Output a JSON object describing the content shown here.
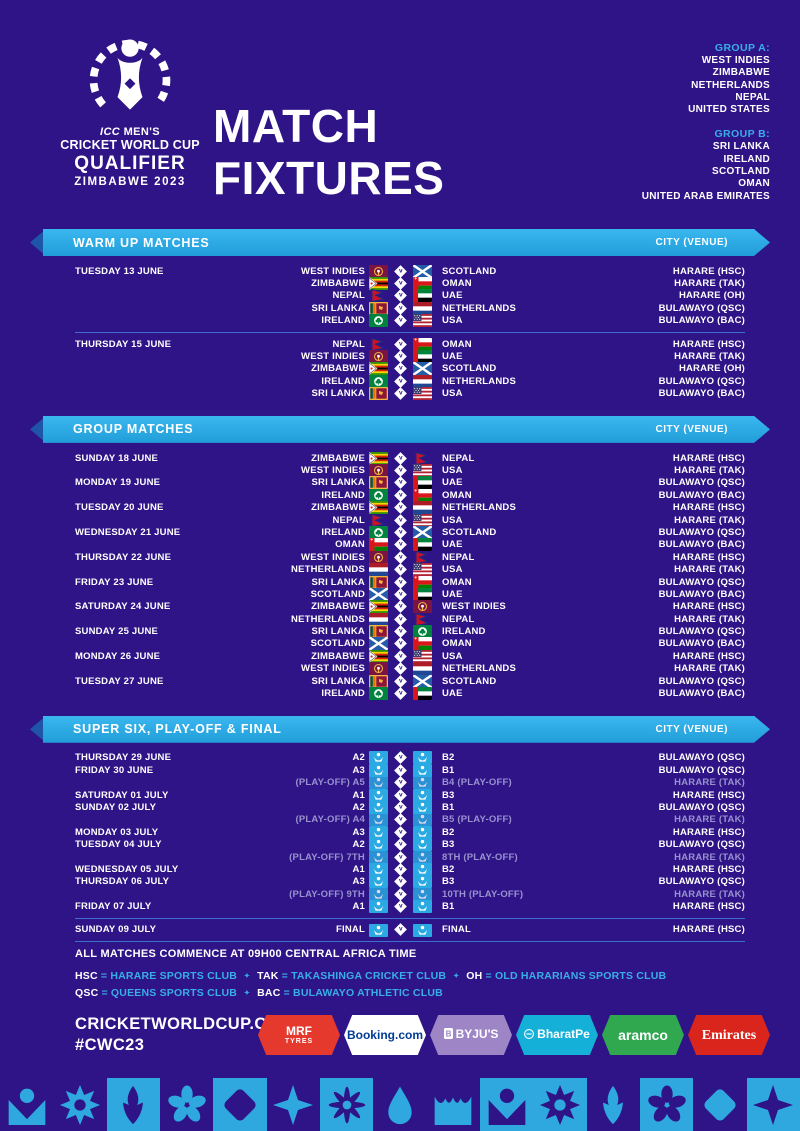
{
  "colors": {
    "background": "#2F1487",
    "banner_blue": "#29A9E1",
    "banner_tail": "#1E55A9",
    "cyan_text": "#38AEE9",
    "dim_text": "#9A92CF",
    "divider": "#3D6FD2",
    "band_blue": "#2FA8E0"
  },
  "header": {
    "logo": {
      "line1_italic": "ICC",
      "line1_rest": " MEN'S",
      "line2": "CRICKET WORLD CUP",
      "line3": "QUALIFIER",
      "line4": "ZIMBABWE 2023"
    },
    "title_line1": "MATCH",
    "title_line2": "FIXTURES",
    "group_a": {
      "label": "GROUP A:",
      "teams": [
        "WEST INDIES",
        "ZIMBABWE",
        "NETHERLANDS",
        "NEPAL",
        "UNITED STATES"
      ]
    },
    "group_b": {
      "label": "GROUP B:",
      "teams": [
        "SRI LANKA",
        "IRELAND",
        "SCOTLAND",
        "OMAN",
        "UNITED ARAB EMIRATES"
      ]
    }
  },
  "sections": [
    {
      "id": "warmup",
      "title": "WARM UP MATCHES",
      "venue_header": "CITY (VENUE)",
      "rows": [
        {
          "date": "TUESDAY 13 JUNE",
          "team1": "WEST INDIES",
          "flag1": "west-indies",
          "team2": "SCOTLAND",
          "flag2": "scotland",
          "venue": "HARARE (HSC)"
        },
        {
          "date": "",
          "team1": "ZIMBABWE",
          "flag1": "zimbabwe",
          "team2": "OMAN",
          "flag2": "oman",
          "venue": "HARARE (TAK)"
        },
        {
          "date": "",
          "team1": "NEPAL",
          "flag1": "nepal",
          "team2": "UAE",
          "flag2": "uae",
          "venue": "HARARE (OH)"
        },
        {
          "date": "",
          "team1": "SRI LANKA",
          "flag1": "sri-lanka",
          "team2": "NETHERLANDS",
          "flag2": "netherlands",
          "venue": "BULAWAYO (QSC)"
        },
        {
          "date": "",
          "team1": "IRELAND",
          "flag1": "ireland",
          "team2": "USA",
          "flag2": "usa",
          "venue": "BULAWAYO (BAC)"
        },
        {
          "date": "THURSDAY 15 JUNE",
          "team1": "NEPAL",
          "flag1": "nepal",
          "team2": "OMAN",
          "flag2": "oman",
          "venue": "HARARE (HSC)",
          "divider_above": true
        },
        {
          "date": "",
          "team1": "WEST INDIES",
          "flag1": "west-indies",
          "team2": "UAE",
          "flag2": "uae",
          "venue": "HARARE (TAK)"
        },
        {
          "date": "",
          "team1": "ZIMBABWE",
          "flag1": "zimbabwe",
          "team2": "SCOTLAND",
          "flag2": "scotland",
          "venue": "HARARE (OH)"
        },
        {
          "date": "",
          "team1": "IRELAND",
          "flag1": "ireland",
          "team2": "NETHERLANDS",
          "flag2": "netherlands",
          "venue": "BULAWAYO (QSC)"
        },
        {
          "date": "",
          "team1": "SRI LANKA",
          "flag1": "sri-lanka",
          "team2": "USA",
          "flag2": "usa",
          "venue": "BULAWAYO (BAC)"
        }
      ]
    },
    {
      "id": "group",
      "title": "GROUP MATCHES",
      "venue_header": "CITY (VENUE)",
      "rows": [
        {
          "date": "SUNDAY 18 JUNE",
          "team1": "ZIMBABWE",
          "flag1": "zimbabwe",
          "team2": "NEPAL",
          "flag2": "nepal",
          "venue": "HARARE (HSC)"
        },
        {
          "date": "",
          "team1": "WEST INDIES",
          "flag1": "west-indies",
          "team2": "USA",
          "flag2": "usa",
          "venue": "HARARE (TAK)"
        },
        {
          "date": "MONDAY 19 JUNE",
          "team1": "SRI LANKA",
          "flag1": "sri-lanka",
          "team2": "UAE",
          "flag2": "uae",
          "venue": "BULAWAYO (QSC)"
        },
        {
          "date": "",
          "team1": "IRELAND",
          "flag1": "ireland",
          "team2": "OMAN",
          "flag2": "oman",
          "venue": "BULAWAYO (BAC)"
        },
        {
          "date": "TUESDAY 20 JUNE",
          "team1": "ZIMBABWE",
          "flag1": "zimbabwe",
          "team2": "NETHERLANDS",
          "flag2": "netherlands",
          "venue": "HARARE (HSC)"
        },
        {
          "date": "",
          "team1": "NEPAL",
          "flag1": "nepal",
          "team2": "USA",
          "flag2": "usa",
          "venue": "HARARE (TAK)"
        },
        {
          "date": "WEDNESDAY 21 JUNE",
          "team1": "IRELAND",
          "flag1": "ireland",
          "team2": "SCOTLAND",
          "flag2": "scotland",
          "venue": "BULAWAYO (QSC)"
        },
        {
          "date": "",
          "team1": "OMAN",
          "flag1": "oman",
          "team2": "UAE",
          "flag2": "uae",
          "venue": "BULAWAYO (BAC)"
        },
        {
          "date": "THURSDAY 22 JUNE",
          "team1": "WEST INDIES",
          "flag1": "west-indies",
          "team2": "NEPAL",
          "flag2": "nepal",
          "venue": "HARARE (HSC)"
        },
        {
          "date": "",
          "team1": "NETHERLANDS",
          "flag1": "netherlands",
          "team2": "USA",
          "flag2": "usa",
          "venue": "HARARE (TAK)"
        },
        {
          "date": "FRIDAY 23 JUNE",
          "team1": "SRI LANKA",
          "flag1": "sri-lanka",
          "team2": "OMAN",
          "flag2": "oman",
          "venue": "BULAWAYO (QSC)"
        },
        {
          "date": "",
          "team1": "SCOTLAND",
          "flag1": "scotland",
          "team2": "UAE",
          "flag2": "uae",
          "venue": "BULAWAYO (BAC)"
        },
        {
          "date": "SATURDAY 24 JUNE",
          "team1": "ZIMBABWE",
          "flag1": "zimbabwe",
          "team2": "WEST INDIES",
          "flag2": "west-indies",
          "venue": "HARARE (HSC)"
        },
        {
          "date": "",
          "team1": "NETHERLANDS",
          "flag1": "netherlands",
          "team2": "NEPAL",
          "flag2": "nepal",
          "venue": "HARARE (TAK)"
        },
        {
          "date": "SUNDAY 25 JUNE",
          "team1": "SRI LANKA",
          "flag1": "sri-lanka",
          "team2": "IRELAND",
          "flag2": "ireland",
          "venue": "BULAWAYO (QSC)"
        },
        {
          "date": "",
          "team1": "SCOTLAND",
          "flag1": "scotland",
          "team2": "OMAN",
          "flag2": "oman",
          "venue": "BULAWAYO (BAC)"
        },
        {
          "date": "MONDAY 26 JUNE",
          "team1": "ZIMBABWE",
          "flag1": "zimbabwe",
          "team2": "USA",
          "flag2": "usa",
          "venue": "HARARE (HSC)"
        },
        {
          "date": "",
          "team1": "WEST INDIES",
          "flag1": "west-indies",
          "team2": "NETHERLANDS",
          "flag2": "netherlands",
          "venue": "HARARE (TAK)"
        },
        {
          "date": "TUESDAY 27 JUNE",
          "team1": "SRI LANKA",
          "flag1": "sri-lanka",
          "team2": "SCOTLAND",
          "flag2": "scotland",
          "venue": "BULAWAYO (QSC)"
        },
        {
          "date": "",
          "team1": "IRELAND",
          "flag1": "ireland",
          "team2": "UAE",
          "flag2": "uae",
          "venue": "BULAWAYO (BAC)"
        }
      ]
    },
    {
      "id": "supersix",
      "title": "SUPER SIX, PLAY-OFF & FINAL",
      "venue_header": "CITY (VENUE)",
      "rows": [
        {
          "date": "THURSDAY 29 JUNE",
          "team1": "A2",
          "flag1": "tbd",
          "team2": "B2",
          "flag2": "tbd",
          "venue": "BULAWAYO (QSC)"
        },
        {
          "date": "FRIDAY 30 JUNE",
          "team1": "A3",
          "flag1": "tbd",
          "team2": "B1",
          "flag2": "tbd",
          "venue": "BULAWAYO (QSC)"
        },
        {
          "date": "",
          "team1": "(PLAY-OFF) A5",
          "flag1": "tbd",
          "team2": "B4 (PLAY-OFF)",
          "flag2": "tbd",
          "venue": "HARARE (TAK)",
          "dim": true
        },
        {
          "date": "SATURDAY 01 JULY",
          "team1": "A1",
          "flag1": "tbd",
          "team2": "B3",
          "flag2": "tbd",
          "venue": "HARARE (HSC)"
        },
        {
          "date": "SUNDAY 02 JULY",
          "team1": "A2",
          "flag1": "tbd",
          "team2": "B1",
          "flag2": "tbd",
          "venue": "BULAWAYO (QSC)"
        },
        {
          "date": "",
          "team1": "(PLAY-OFF) A4",
          "flag1": "tbd",
          "team2": "B5 (PLAY-OFF)",
          "flag2": "tbd",
          "venue": "HARARE (TAK)",
          "dim": true
        },
        {
          "date": "MONDAY 03 JULY",
          "team1": "A3",
          "flag1": "tbd",
          "team2": "B2",
          "flag2": "tbd",
          "venue": "HARARE (HSC)"
        },
        {
          "date": "TUESDAY 04 JULY",
          "team1": "A2",
          "flag1": "tbd",
          "team2": "B3",
          "flag2": "tbd",
          "venue": "BULAWAYO (QSC)"
        },
        {
          "date": "",
          "team1": "(PLAY-OFF) 7TH",
          "flag1": "tbd",
          "team2": "8TH (PLAY-OFF)",
          "flag2": "tbd",
          "venue": "HARARE (TAK)",
          "dim": true
        },
        {
          "date": "WEDNESDAY 05 JULY",
          "team1": "A1",
          "flag1": "tbd",
          "team2": "B2",
          "flag2": "tbd",
          "venue": "HARARE (HSC)"
        },
        {
          "date": "THURSDAY 06 JULY",
          "team1": "A3",
          "flag1": "tbd",
          "team2": "B3",
          "flag2": "tbd",
          "venue": "BULAWAYO (QSC)"
        },
        {
          "date": "",
          "team1": "(PLAY-OFF) 9TH",
          "flag1": "tbd",
          "team2": "10TH (PLAY-OFF)",
          "flag2": "tbd",
          "venue": "HARARE (TAK)",
          "dim": true
        },
        {
          "date": "FRIDAY 07 JULY",
          "team1": "A1",
          "flag1": "tbd",
          "team2": "B1",
          "flag2": "tbd",
          "venue": "HARARE (HSC)"
        },
        {
          "date": "SUNDAY 09 JULY",
          "team1": "FINAL",
          "flag1": "tbd",
          "team2": "FINAL",
          "flag2": "tbd",
          "venue": "HARARE (HSC)",
          "divider_above": true,
          "divider_below": true,
          "final": true
        }
      ]
    }
  ],
  "footer": {
    "note": "ALL MATCHES COMMENCE AT 09H00 CENTRAL AFRICA TIME",
    "legend": [
      [
        {
          "abbr": "HSC",
          "def": "HARARE SPORTS CLUB"
        },
        {
          "abbr": "TAK",
          "def": "TAKASHINGA CRICKET CLUB"
        },
        {
          "abbr": "OH",
          "def": "OLD HARARIANS SPORTS CLUB"
        }
      ],
      [
        {
          "abbr": "QSC",
          "def": "QUEENS SPORTS CLUB"
        },
        {
          "abbr": "BAC",
          "def": "BULAWAYO ATHLETIC CLUB"
        }
      ]
    ],
    "website": "CRICKETWORLDCUP.COM",
    "hashtag": "#CWC23",
    "sponsors": [
      {
        "id": "mrf",
        "label": "MRF",
        "sub": "TYRES",
        "bg": "#E6392E",
        "fg": "#FFFFFF"
      },
      {
        "id": "booking",
        "label": "Booking.com",
        "bg": "#FFFFFF",
        "fg": "#003B95"
      },
      {
        "id": "byjus",
        "label": "BYJU'S",
        "bg": "#9D85C6",
        "fg": "#FFFFFF"
      },
      {
        "id": "bharatpe",
        "label": "BharatPe",
        "bg": "#15B0D8",
        "fg": "#FFFFFF"
      },
      {
        "id": "aramco",
        "label": "aramco",
        "bg": "#2FA850",
        "fg": "#FFFFFF"
      },
      {
        "id": "emirates",
        "label": "Emirates",
        "bg": "#D9251C",
        "fg": "#FFFFFF"
      }
    ]
  },
  "decor": {
    "band_tiles": [
      {
        "motif": "person",
        "tiled": false
      },
      {
        "motif": "sunburst",
        "tiled": false
      },
      {
        "motif": "rocket",
        "tiled": true
      },
      {
        "motif": "flower",
        "tiled": false
      },
      {
        "motif": "diamond",
        "tiled": true
      },
      {
        "motif": "star4",
        "tiled": false
      },
      {
        "motif": "asterisk",
        "tiled": true
      },
      {
        "motif": "droplet",
        "tiled": false
      },
      {
        "motif": "crown",
        "tiled": false
      },
      {
        "motif": "person",
        "tiled": true
      },
      {
        "motif": "sunburst",
        "tiled": true
      },
      {
        "motif": "rocket",
        "tiled": false
      },
      {
        "motif": "flower",
        "tiled": true
      },
      {
        "motif": "diamond",
        "tiled": false
      },
      {
        "motif": "star4",
        "tiled": true
      }
    ]
  }
}
